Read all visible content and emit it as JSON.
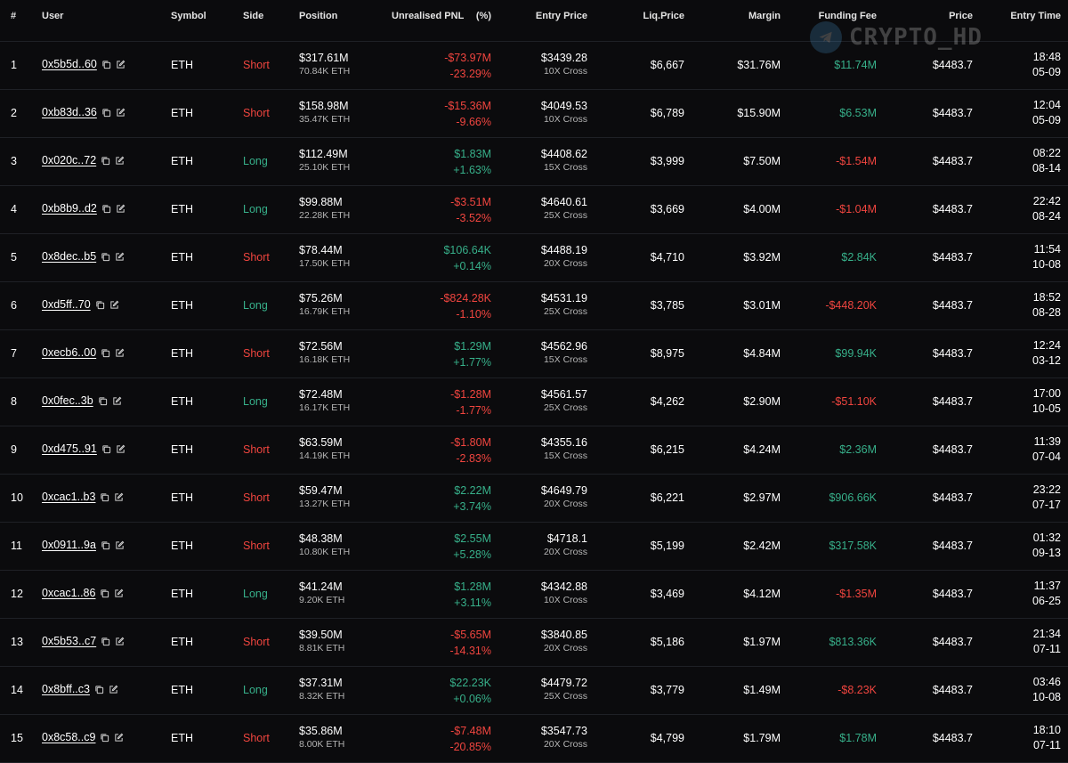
{
  "headers": {
    "num": "#",
    "user": "User",
    "symbol": "Symbol",
    "side": "Side",
    "position": "Position",
    "pnl": "Unrealised PNL",
    "pct": "(%)",
    "entry": "Entry Price",
    "liq": "Liq.Price",
    "margin": "Margin",
    "funding": "Funding Fee",
    "price": "Price",
    "time": "Entry Time"
  },
  "watermark": {
    "text": "CRYPTO_HD",
    "icon": "telegram-icon",
    "color": "#4aa3df"
  },
  "colors": {
    "short": "#f0453f",
    "long": "#37b08a",
    "background": "#0b0b0d"
  },
  "rows": [
    {
      "num": "1",
      "user": "0x5b5d..60",
      "symbol": "ETH",
      "side": "Short",
      "pos": "$317.61M",
      "pos_sub": "70.84K ETH",
      "pnl": "-$73.97M",
      "pnl_pct": "-23.29%",
      "entry": "$3439.28",
      "lev": "10X Cross",
      "liq": "$6,667",
      "margin": "$31.76M",
      "fund": "$11.74M",
      "price": "$4483.7",
      "time": "18:48",
      "date": "05-09"
    },
    {
      "num": "2",
      "user": "0xb83d..36",
      "symbol": "ETH",
      "side": "Short",
      "pos": "$158.98M",
      "pos_sub": "35.47K ETH",
      "pnl": "-$15.36M",
      "pnl_pct": "-9.66%",
      "entry": "$4049.53",
      "lev": "10X Cross",
      "liq": "$6,789",
      "margin": "$15.90M",
      "fund": "$6.53M",
      "price": "$4483.7",
      "time": "12:04",
      "date": "05-09"
    },
    {
      "num": "3",
      "user": "0x020c..72",
      "symbol": "ETH",
      "side": "Long",
      "pos": "$112.49M",
      "pos_sub": "25.10K ETH",
      "pnl": "$1.83M",
      "pnl_pct": "+1.63%",
      "entry": "$4408.62",
      "lev": "15X Cross",
      "liq": "$3,999",
      "margin": "$7.50M",
      "fund": "-$1.54M",
      "price": "$4483.7",
      "time": "08:22",
      "date": "08-14"
    },
    {
      "num": "4",
      "user": "0xb8b9..d2",
      "symbol": "ETH",
      "side": "Long",
      "pos": "$99.88M",
      "pos_sub": "22.28K ETH",
      "pnl": "-$3.51M",
      "pnl_pct": "-3.52%",
      "entry": "$4640.61",
      "lev": "25X Cross",
      "liq": "$3,669",
      "margin": "$4.00M",
      "fund": "-$1.04M",
      "price": "$4483.7",
      "time": "22:42",
      "date": "08-24"
    },
    {
      "num": "5",
      "user": "0x8dec..b5",
      "symbol": "ETH",
      "side": "Short",
      "pos": "$78.44M",
      "pos_sub": "17.50K ETH",
      "pnl": "$106.64K",
      "pnl_pct": "+0.14%",
      "entry": "$4488.19",
      "lev": "20X Cross",
      "liq": "$4,710",
      "margin": "$3.92M",
      "fund": "$2.84K",
      "price": "$4483.7",
      "time": "11:54",
      "date": "10-08"
    },
    {
      "num": "6",
      "user": "0xd5ff..70",
      "symbol": "ETH",
      "side": "Long",
      "pos": "$75.26M",
      "pos_sub": "16.79K ETH",
      "pnl": "-$824.28K",
      "pnl_pct": "-1.10%",
      "entry": "$4531.19",
      "lev": "25X Cross",
      "liq": "$3,785",
      "margin": "$3.01M",
      "fund": "-$448.20K",
      "price": "$4483.7",
      "time": "18:52",
      "date": "08-28"
    },
    {
      "num": "7",
      "user": "0xecb6..00",
      "symbol": "ETH",
      "side": "Short",
      "pos": "$72.56M",
      "pos_sub": "16.18K ETH",
      "pnl": "$1.29M",
      "pnl_pct": "+1.77%",
      "entry": "$4562.96",
      "lev": "15X Cross",
      "liq": "$8,975",
      "margin": "$4.84M",
      "fund": "$99.94K",
      "price": "$4483.7",
      "time": "12:24",
      "date": "03-12"
    },
    {
      "num": "8",
      "user": "0x0fec..3b",
      "symbol": "ETH",
      "side": "Long",
      "pos": "$72.48M",
      "pos_sub": "16.17K ETH",
      "pnl": "-$1.28M",
      "pnl_pct": "-1.77%",
      "entry": "$4561.57",
      "lev": "25X Cross",
      "liq": "$4,262",
      "margin": "$2.90M",
      "fund": "-$51.10K",
      "price": "$4483.7",
      "time": "17:00",
      "date": "10-05"
    },
    {
      "num": "9",
      "user": "0xd475..91",
      "symbol": "ETH",
      "side": "Short",
      "pos": "$63.59M",
      "pos_sub": "14.19K ETH",
      "pnl": "-$1.80M",
      "pnl_pct": "-2.83%",
      "entry": "$4355.16",
      "lev": "15X Cross",
      "liq": "$6,215",
      "margin": "$4.24M",
      "fund": "$2.36M",
      "price": "$4483.7",
      "time": "11:39",
      "date": "07-04"
    },
    {
      "num": "10",
      "user": "0xcac1..b3",
      "symbol": "ETH",
      "side": "Short",
      "pos": "$59.47M",
      "pos_sub": "13.27K ETH",
      "pnl": "$2.22M",
      "pnl_pct": "+3.74%",
      "entry": "$4649.79",
      "lev": "20X Cross",
      "liq": "$6,221",
      "margin": "$2.97M",
      "fund": "$906.66K",
      "price": "$4483.7",
      "time": "23:22",
      "date": "07-17"
    },
    {
      "num": "11",
      "user": "0x0911..9a",
      "symbol": "ETH",
      "side": "Short",
      "pos": "$48.38M",
      "pos_sub": "10.80K ETH",
      "pnl": "$2.55M",
      "pnl_pct": "+5.28%",
      "entry": "$4718.1",
      "lev": "20X Cross",
      "liq": "$5,199",
      "margin": "$2.42M",
      "fund": "$317.58K",
      "price": "$4483.7",
      "time": "01:32",
      "date": "09-13"
    },
    {
      "num": "12",
      "user": "0xcac1..86",
      "symbol": "ETH",
      "side": "Long",
      "pos": "$41.24M",
      "pos_sub": "9.20K ETH",
      "pnl": "$1.28M",
      "pnl_pct": "+3.11%",
      "entry": "$4342.88",
      "lev": "10X Cross",
      "liq": "$3,469",
      "margin": "$4.12M",
      "fund": "-$1.35M",
      "price": "$4483.7",
      "time": "11:37",
      "date": "06-25"
    },
    {
      "num": "13",
      "user": "0x5b53..c7",
      "symbol": "ETH",
      "side": "Short",
      "pos": "$39.50M",
      "pos_sub": "8.81K ETH",
      "pnl": "-$5.65M",
      "pnl_pct": "-14.31%",
      "entry": "$3840.85",
      "lev": "20X Cross",
      "liq": "$5,186",
      "margin": "$1.97M",
      "fund": "$813.36K",
      "price": "$4483.7",
      "time": "21:34",
      "date": "07-11"
    },
    {
      "num": "14",
      "user": "0x8bff..c3",
      "symbol": "ETH",
      "side": "Long",
      "pos": "$37.31M",
      "pos_sub": "8.32K ETH",
      "pnl": "$22.23K",
      "pnl_pct": "+0.06%",
      "entry": "$4479.72",
      "lev": "25X Cross",
      "liq": "$3,779",
      "margin": "$1.49M",
      "fund": "-$8.23K",
      "price": "$4483.7",
      "time": "03:46",
      "date": "10-08"
    },
    {
      "num": "15",
      "user": "0x8c58..c9",
      "symbol": "ETH",
      "side": "Short",
      "pos": "$35.86M",
      "pos_sub": "8.00K ETH",
      "pnl": "-$7.48M",
      "pnl_pct": "-20.85%",
      "entry": "$3547.73",
      "lev": "20X Cross",
      "liq": "$4,799",
      "margin": "$1.79M",
      "fund": "$1.78M",
      "price": "$4483.7",
      "time": "18:10",
      "date": "07-11"
    }
  ]
}
